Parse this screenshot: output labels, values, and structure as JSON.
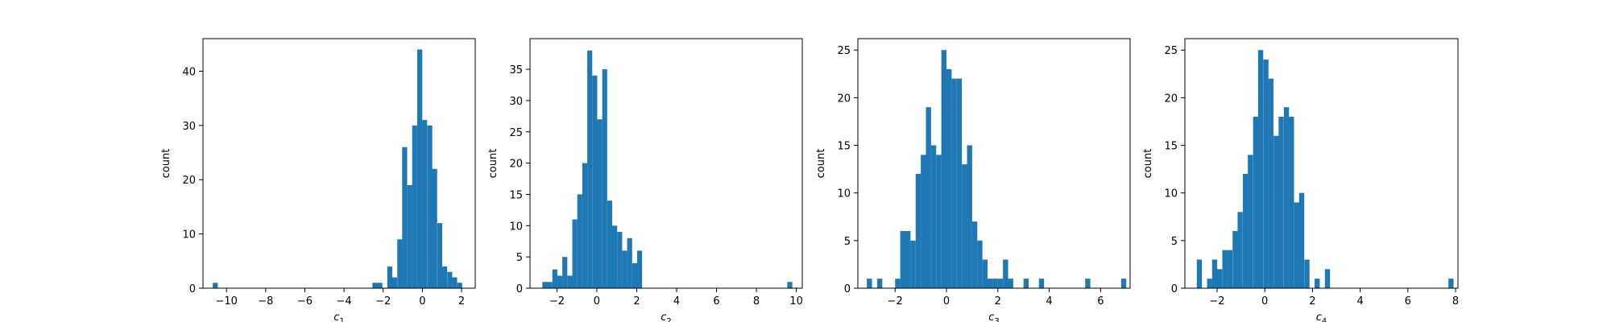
{
  "bar_color": "#1f77b4",
  "chart_data": [
    {
      "type": "bar",
      "title": "",
      "xlabel": "c",
      "xlabel_sub": "1",
      "ylabel": "count",
      "xlim": [
        -11.2,
        2.7
      ],
      "ylim": [
        0,
        46
      ],
      "xticks": [
        -10,
        -8,
        -6,
        -4,
        -2,
        0,
        2
      ],
      "yticks": [
        0,
        10,
        20,
        30,
        40
      ],
      "bin_width": 0.255,
      "bin_starts": [
        -10.7,
        -2.55,
        -2.3,
        -2.05,
        -1.79,
        -1.54,
        -1.28,
        -1.03,
        -0.77,
        -0.52,
        -0.26,
        -0.01,
        0.25,
        0.5,
        0.76,
        1.01,
        1.27,
        1.52,
        1.78
      ],
      "counts": [
        1,
        1,
        1,
        0,
        4,
        2,
        9,
        26,
        19,
        30,
        44,
        31,
        30,
        22,
        12,
        4,
        3,
        2,
        1
      ]
    },
    {
      "type": "bar",
      "title": "",
      "xlabel": "c",
      "xlabel_sub": "2",
      "ylabel": "count",
      "xlim": [
        -3.35,
        10.3
      ],
      "ylim": [
        0,
        39.9
      ],
      "xticks": [
        -2,
        0,
        2,
        4,
        6,
        8,
        10
      ],
      "yticks": [
        0,
        5,
        10,
        15,
        20,
        25,
        30,
        35
      ],
      "bin_width": 0.25,
      "bin_starts": [
        -2.73,
        -2.48,
        -2.23,
        -1.98,
        -1.73,
        -1.48,
        -1.23,
        -0.98,
        -0.73,
        -0.48,
        -0.23,
        0.02,
        0.27,
        0.52,
        0.77,
        1.02,
        1.27,
        1.52,
        1.77,
        2.02,
        9.55
      ],
      "counts": [
        1,
        1,
        3,
        2,
        5,
        2,
        11,
        15,
        20,
        38,
        34,
        27,
        35,
        14,
        10,
        9,
        6,
        8,
        4,
        6,
        1
      ]
    },
    {
      "type": "bar",
      "title": "",
      "xlabel": "c",
      "xlabel_sub": "3",
      "ylabel": "count",
      "xlim": [
        -3.45,
        7.15
      ],
      "ylim": [
        0,
        26.2
      ],
      "xticks": [
        -2,
        0,
        2,
        4,
        6
      ],
      "yticks": [
        0,
        5,
        10,
        15,
        20,
        25
      ],
      "bin_width": 0.2,
      "bin_starts": [
        -3.1,
        -2.7,
        -2.0,
        -1.8,
        -1.6,
        -1.4,
        -1.2,
        -1.0,
        -0.8,
        -0.6,
        -0.4,
        -0.2,
        0.0,
        0.2,
        0.4,
        0.6,
        0.8,
        1.0,
        1.2,
        1.4,
        1.6,
        1.8,
        2.0,
        2.2,
        2.4,
        3.0,
        3.6,
        5.4,
        6.8
      ],
      "counts": [
        1,
        1,
        1,
        6,
        6,
        5,
        12,
        14,
        19,
        15,
        14,
        25,
        23,
        22,
        22,
        13,
        15,
        7,
        5,
        3,
        1,
        1,
        1,
        3,
        1,
        1,
        1,
        1,
        1
      ]
    },
    {
      "type": "bar",
      "title": "",
      "xlabel": "c",
      "xlabel_sub": "4",
      "ylabel": "count",
      "xlim": [
        -3.35,
        8.1
      ],
      "ylim": [
        0,
        26.2
      ],
      "xticks": [
        -2,
        0,
        2,
        4,
        6,
        8
      ],
      "yticks": [
        0,
        5,
        10,
        15,
        20,
        25
      ],
      "bin_width": 0.215,
      "bin_starts": [
        -2.85,
        -2.42,
        -2.21,
        -2.0,
        -1.78,
        -1.57,
        -1.35,
        -1.14,
        -0.92,
        -0.71,
        -0.49,
        -0.28,
        -0.06,
        0.15,
        0.37,
        0.58,
        0.8,
        1.01,
        1.23,
        1.44,
        1.66,
        2.09,
        2.52,
        7.7
      ],
      "counts": [
        3,
        1,
        3,
        2,
        4,
        4,
        6,
        8,
        12,
        14,
        18,
        25,
        24,
        22,
        16,
        18,
        19,
        18,
        9,
        10,
        3,
        1,
        2,
        1
      ]
    }
  ]
}
